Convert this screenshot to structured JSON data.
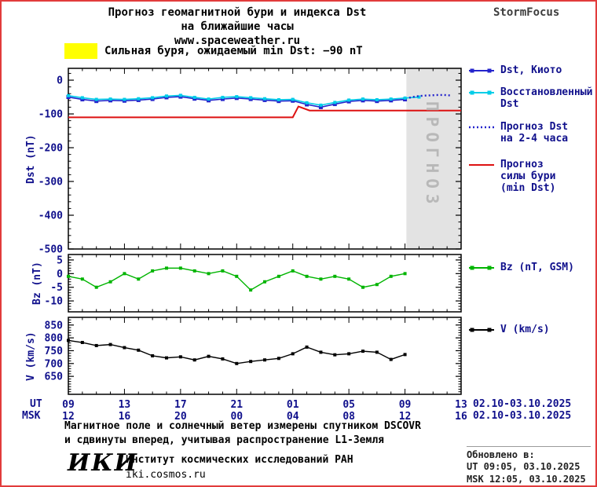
{
  "header": {
    "title_line1": "Прогноз геомагнитной бури и индекса Dst",
    "title_line2": "на ближайшие часы",
    "website": "www.spaceweather.ru",
    "brand": "StormFocus"
  },
  "alert": {
    "text": "Сильная буря, ожидаемый min Dst: −90 nT",
    "swatch_color": "#ffff00"
  },
  "colors": {
    "dst_kyoto": "#2424cc",
    "dst_restored": "#00cde8",
    "dst_forecast": "#2424cc",
    "storm_forecast": "#dd1111",
    "bz": "#00b400",
    "v": "#000000",
    "axis_text": "#10108c",
    "forecast_region_fill": "#e3e3e3",
    "forecast_region_text": "#b8b8b8",
    "border": "#e23c3c"
  },
  "forecast_region_label": "ПРОГНОЗ",
  "legend_main": [
    {
      "lines": [
        "Dst, Киото"
      ],
      "color": "#2424cc",
      "style": "line-markers"
    },
    {
      "lines": [
        "Восстановленный",
        "Dst"
      ],
      "color": "#00cde8",
      "style": "line-markers"
    },
    {
      "lines": [
        "Прогноз Dst",
        "на 2-4 часа"
      ],
      "color": "#2424cc",
      "style": "dotted"
    },
    {
      "lines": [
        "Прогноз",
        "силы бури",
        "(min Dst)"
      ],
      "color": "#dd1111",
      "style": "line"
    }
  ],
  "legend_bz": {
    "lines": [
      "Bz (nT, GSM)"
    ],
    "color": "#00b400",
    "style": "line-markers"
  },
  "legend_v": {
    "lines": [
      "V (km/s)"
    ],
    "color": "#000000",
    "style": "line-markers"
  },
  "xaxis": {
    "ut_label": "UT",
    "msk_label": "MSK",
    "tick_hours": [
      0,
      4,
      8,
      12,
      16,
      20,
      24,
      28
    ],
    "ut_ticks": [
      "09",
      "13",
      "17",
      "21",
      "01",
      "05",
      "09",
      "13"
    ],
    "msk_ticks": [
      "12",
      "16",
      "20",
      "00",
      "04",
      "08",
      "12",
      "16"
    ],
    "ut_date": "02.10-03.10.2025",
    "msk_date": "02.10-03.10.2025"
  },
  "chart_data": [
    {
      "id": "dst",
      "type": "line",
      "ylabel": "Dst (nT)",
      "ylim": [
        35,
        -500
      ],
      "ytick_values": [
        0,
        -100,
        -200,
        -300,
        -400,
        -500
      ],
      "ytick_labels": [
        "0",
        "-100",
        "-200",
        "-300",
        "-400",
        "-500"
      ],
      "yminor_step": 20,
      "xlim_hours": [
        0,
        28
      ],
      "forecast_region": {
        "from": 24.1,
        "to": 28
      },
      "series": [
        {
          "name": "Dst, Киото",
          "color": "#2424cc",
          "marker": true,
          "msize": 5,
          "width": 1.6,
          "x": [
            0,
            1,
            2,
            3,
            4,
            5,
            6,
            7,
            8,
            9,
            10,
            11,
            12,
            13,
            14,
            15,
            16,
            17,
            18,
            19,
            20,
            21,
            22,
            23,
            24
          ],
          "y": [
            -50,
            -57,
            -62,
            -60,
            -61,
            -59,
            -56,
            -51,
            -49,
            -55,
            -60,
            -56,
            -53,
            -56,
            -59,
            -62,
            -61,
            -72,
            -80,
            -71,
            -63,
            -60,
            -62,
            -60,
            -57
          ]
        },
        {
          "name": "Восстановленный Dst",
          "color": "#00cde8",
          "marker": true,
          "msize": 4,
          "width": 1.6,
          "x": [
            0,
            1,
            2,
            3,
            4,
            5,
            6,
            7,
            8,
            9,
            10,
            11,
            12,
            13,
            14,
            15,
            16,
            17,
            18,
            19,
            20,
            21,
            22,
            23,
            24,
            25
          ],
          "y": [
            -46,
            -52,
            -57,
            -56,
            -57,
            -55,
            -52,
            -47,
            -45,
            -51,
            -56,
            -51,
            -49,
            -52,
            -55,
            -58,
            -57,
            -67,
            -74,
            -66,
            -59,
            -56,
            -58,
            -56,
            -53,
            -50
          ]
        },
        {
          "name": "Прогноз Dst на 2-4 часа",
          "color": "#2424cc",
          "dotted": true,
          "width": 2.4,
          "x": [
            24.3,
            24.8,
            25.3,
            25.8,
            26.3,
            26.8,
            27.2
          ],
          "y": [
            -52,
            -48,
            -46,
            -45,
            -44,
            -44,
            -45
          ]
        },
        {
          "name": "Прогноз силы бури (min Dst)",
          "color": "#dd1111",
          "width": 2,
          "x": [
            0,
            16,
            16.4,
            17.2,
            28
          ],
          "y": [
            -110,
            -110,
            -78,
            -90,
            -90
          ]
        }
      ]
    },
    {
      "id": "bz",
      "type": "line",
      "ylabel": "Bz (nT)",
      "ylim": [
        7,
        -14
      ],
      "ytick_values": [
        5,
        0,
        -5,
        -10
      ],
      "ytick_labels": [
        "5",
        "0",
        "-5",
        "-10"
      ],
      "yminor_step": 1,
      "xlim_hours": [
        0,
        28
      ],
      "series": [
        {
          "name": "Bz (nT, GSM)",
          "color": "#00b400",
          "marker": true,
          "msize": 4,
          "width": 1.4,
          "x": [
            0,
            1,
            2,
            3,
            4,
            5,
            6,
            7,
            8,
            9,
            10,
            11,
            12,
            13,
            14,
            15,
            16,
            17,
            18,
            19,
            20,
            21,
            22,
            23,
            24
          ],
          "y": [
            -1,
            -2,
            -5,
            -3,
            0,
            -2,
            1,
            2,
            2,
            1,
            0,
            1,
            -1,
            -6,
            -3,
            -1,
            1,
            -1,
            -2,
            -1,
            -2,
            -5,
            -4,
            -1,
            0
          ]
        }
      ]
    },
    {
      "id": "v",
      "type": "line",
      "ylabel": "V (km/s)",
      "ylim": [
        880,
        580
      ],
      "ytick_values": [
        850,
        800,
        750,
        700,
        650
      ],
      "ytick_labels": [
        "850",
        "800",
        "750",
        "700",
        "650"
      ],
      "yminor_step": 10,
      "xlim_hours": [
        0,
        28
      ],
      "series": [
        {
          "name": "V (km/s)",
          "color": "#000000",
          "marker": true,
          "msize": 4,
          "width": 1.4,
          "x": [
            0,
            1,
            2,
            3,
            4,
            5,
            6,
            7,
            8,
            9,
            10,
            11,
            12,
            13,
            14,
            15,
            16,
            17,
            18,
            19,
            20,
            21,
            22,
            23,
            24
          ],
          "y": [
            790,
            782,
            770,
            774,
            762,
            752,
            730,
            722,
            726,
            714,
            728,
            718,
            700,
            708,
            714,
            720,
            738,
            764,
            744,
            734,
            738,
            748,
            744,
            716,
            735
          ]
        }
      ]
    }
  ],
  "footer": {
    "note_line1": "Магнитное поле и солнечный ветер измерены спутником DSCOVR",
    "note_line2": "и сдвинуты вперед, учитывая распространение L1-Земля",
    "logo": "ИКИ",
    "institute": "Институт космических исследований РАН",
    "site": "iki.cosmos.ru",
    "updated_label": "Обновлено в:",
    "updated_ut": "UT  09:05, 03.10.2025",
    "updated_msk": "MSK 12:05, 03.10.2025"
  }
}
